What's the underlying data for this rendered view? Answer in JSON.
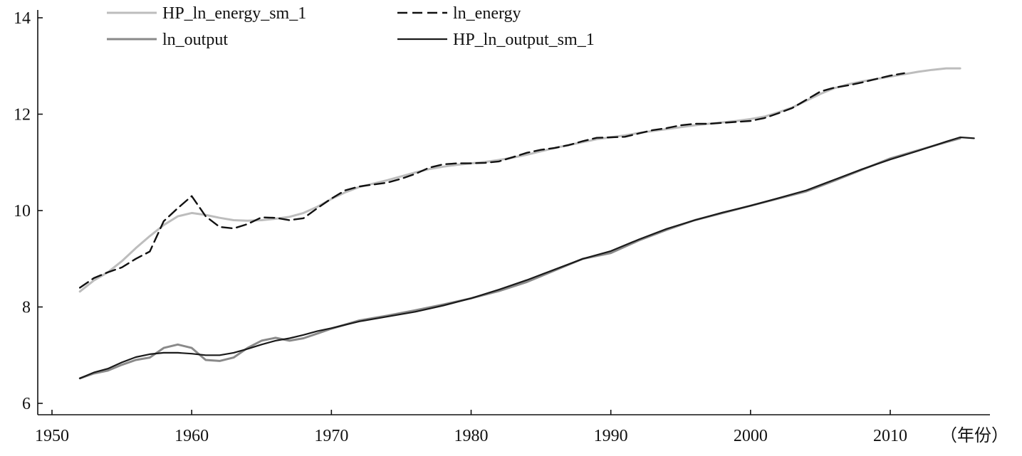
{
  "chart_data": {
    "type": "line",
    "title": "",
    "xlabel": "（年份）",
    "ylabel": "",
    "xlim": [
      1949,
      2017
    ],
    "ylim": [
      6,
      14
    ],
    "x_ticks": [
      1950,
      1960,
      1970,
      1980,
      1990,
      2000,
      2010
    ],
    "y_ticks": [
      6,
      8,
      10,
      12,
      14
    ],
    "grid": false,
    "legend_position": "top-left",
    "colors": {
      "HP_ln_energy_sm_1": "#bdbdbd",
      "ln_energy": "#111111",
      "ln_output": "#8a8a8a",
      "HP_ln_output_sm_1": "#1a1a1a"
    },
    "series": [
      {
        "name": "HP_ln_energy_sm_1",
        "style": "solid-light",
        "x": [
          1952,
          1953,
          1954,
          1955,
          1956,
          1957,
          1958,
          1959,
          1960,
          1961,
          1962,
          1963,
          1964,
          1965,
          1966,
          1967,
          1968,
          1969,
          1970,
          1971,
          1972,
          1973,
          1974,
          1975,
          1976,
          1977,
          1978,
          1979,
          1980,
          1981,
          1982,
          1983,
          1984,
          1985,
          1986,
          1987,
          1988,
          1989,
          1990,
          1991,
          1992,
          1993,
          1994,
          1995,
          1996,
          1997,
          1998,
          1999,
          2000,
          2001,
          2002,
          2003,
          2004,
          2005,
          2006,
          2007,
          2008,
          2009,
          2010,
          2011,
          2012,
          2013,
          2014,
          2015
        ],
        "values": [
          8.32,
          8.55,
          8.72,
          8.95,
          9.22,
          9.47,
          9.7,
          9.88,
          9.95,
          9.91,
          9.85,
          9.8,
          9.79,
          9.8,
          9.83,
          9.87,
          9.95,
          10.08,
          10.24,
          10.38,
          10.49,
          10.56,
          10.63,
          10.71,
          10.79,
          10.86,
          10.91,
          10.95,
          10.98,
          11.01,
          11.05,
          11.1,
          11.16,
          11.23,
          11.3,
          11.36,
          11.42,
          11.48,
          11.52,
          11.56,
          11.61,
          11.65,
          11.69,
          11.73,
          11.77,
          11.8,
          11.83,
          11.86,
          11.9,
          11.95,
          12.04,
          12.14,
          12.28,
          12.42,
          12.54,
          12.62,
          12.68,
          12.73,
          12.78,
          12.83,
          12.88,
          12.92,
          12.95,
          12.95
        ]
      },
      {
        "name": "ln_energy",
        "style": "dashed",
        "x": [
          1952,
          1953,
          1954,
          1955,
          1956,
          1957,
          1958,
          1959,
          1960,
          1961,
          1962,
          1963,
          1964,
          1965,
          1966,
          1967,
          1968,
          1969,
          1970,
          1971,
          1972,
          1973,
          1974,
          1975,
          1976,
          1977,
          1978,
          1979,
          1980,
          1981,
          1982,
          1983,
          1984,
          1985,
          1986,
          1987,
          1988,
          1989,
          1990,
          1991,
          1992,
          1993,
          1994,
          1995,
          1996,
          1997,
          1998,
          1999,
          2000,
          2001,
          2002,
          2003,
          2004,
          2005,
          2006,
          2007,
          2008,
          2009,
          2010,
          2011
        ],
        "values": [
          8.4,
          8.6,
          8.72,
          8.82,
          9.0,
          9.15,
          9.78,
          10.05,
          10.3,
          9.88,
          9.66,
          9.63,
          9.72,
          9.86,
          9.85,
          9.8,
          9.84,
          10.05,
          10.25,
          10.42,
          10.5,
          10.54,
          10.58,
          10.66,
          10.76,
          10.89,
          10.96,
          10.98,
          10.98,
          10.99,
          11.02,
          11.11,
          11.2,
          11.26,
          11.3,
          11.36,
          11.44,
          11.51,
          11.52,
          11.53,
          11.6,
          11.67,
          11.71,
          11.77,
          11.8,
          11.8,
          11.82,
          11.84,
          11.86,
          11.92,
          12.02,
          12.13,
          12.3,
          12.47,
          12.55,
          12.6,
          12.66,
          12.73,
          12.8,
          12.85
        ]
      },
      {
        "name": "ln_output",
        "style": "solid-mid",
        "x": [
          1952,
          1953,
          1954,
          1955,
          1956,
          1957,
          1958,
          1959,
          1960,
          1961,
          1962,
          1963,
          1964,
          1965,
          1966,
          1967,
          1968,
          1969,
          1970,
          1972,
          1974,
          1976,
          1978,
          1980,
          1982,
          1984,
          1986,
          1988,
          1990,
          1992,
          1994,
          1996,
          1998,
          2000,
          2002,
          2004,
          2006,
          2008,
          2010,
          2012,
          2014,
          2015
        ],
        "values": [
          6.52,
          6.62,
          6.68,
          6.8,
          6.9,
          6.95,
          7.15,
          7.22,
          7.15,
          6.9,
          6.88,
          6.95,
          7.15,
          7.3,
          7.36,
          7.3,
          7.35,
          7.45,
          7.55,
          7.72,
          7.82,
          7.93,
          8.05,
          8.18,
          8.33,
          8.52,
          8.76,
          9.0,
          9.12,
          9.38,
          9.6,
          9.8,
          9.95,
          10.1,
          10.25,
          10.4,
          10.62,
          10.85,
          11.08,
          11.25,
          11.42,
          11.5
        ]
      },
      {
        "name": "HP_ln_output_sm_1",
        "style": "solid-dark",
        "x": [
          1952,
          1953,
          1954,
          1955,
          1956,
          1957,
          1958,
          1959,
          1960,
          1961,
          1962,
          1963,
          1964,
          1965,
          1966,
          1967,
          1968,
          1969,
          1970,
          1972,
          1974,
          1976,
          1978,
          1980,
          1982,
          1984,
          1986,
          1988,
          1990,
          1992,
          1994,
          1996,
          1998,
          2000,
          2002,
          2004,
          2006,
          2008,
          2010,
          2012,
          2014,
          2015,
          2016
        ],
        "values": [
          6.52,
          6.64,
          6.72,
          6.85,
          6.96,
          7.02,
          7.05,
          7.05,
          7.03,
          7.0,
          7.0,
          7.05,
          7.13,
          7.22,
          7.3,
          7.35,
          7.42,
          7.5,
          7.56,
          7.7,
          7.8,
          7.9,
          8.03,
          8.18,
          8.36,
          8.56,
          8.78,
          9.0,
          9.16,
          9.4,
          9.62,
          9.8,
          9.96,
          10.1,
          10.26,
          10.42,
          10.64,
          10.86,
          11.06,
          11.24,
          11.43,
          11.52,
          11.5
        ]
      }
    ]
  }
}
